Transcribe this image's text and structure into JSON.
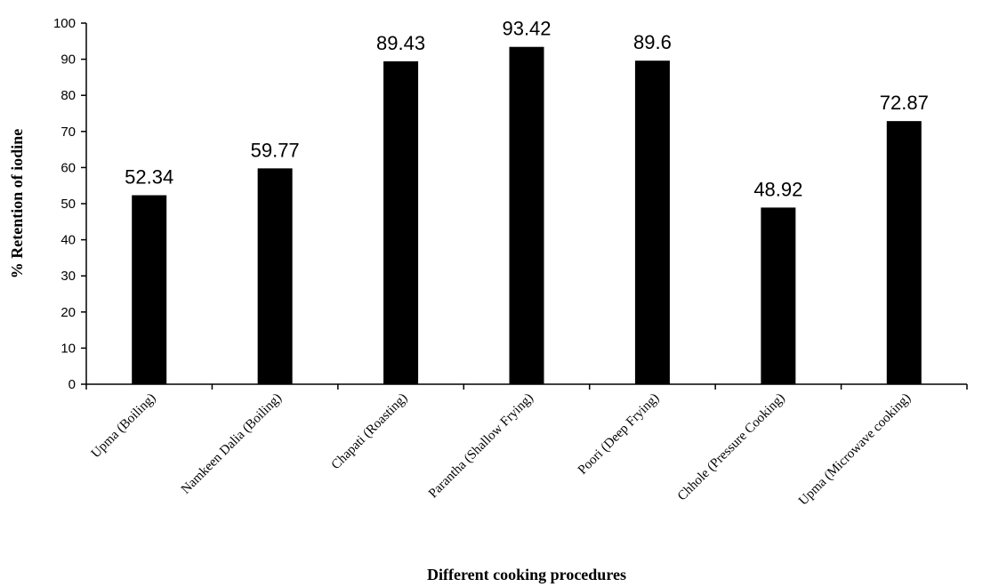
{
  "chart_data": {
    "type": "bar",
    "title": "",
    "xlabel": "Different cooking procedures",
    "ylabel": "% Retention of iodine",
    "categories": [
      "Upma (Boiling)",
      "Namkeen Dalia (Boiling)",
      "Chapati (Roasting)",
      "Parantha (Shallow Frying)",
      "Poori (Deep Frying)",
      "Chhole (Pressure Cooking)",
      "Upma (Microwave cooking)"
    ],
    "values": [
      52.34,
      59.77,
      89.43,
      93.42,
      89.6,
      48.92,
      72.87
    ],
    "data_labels": [
      "52.34",
      "59.77",
      "89.43",
      "93.42",
      "89.6",
      "48.92",
      "72.87"
    ],
    "ylim": [
      0,
      100
    ],
    "yticks": [
      "0",
      "10",
      "20",
      "30",
      "40",
      "50",
      "60",
      "70",
      "80",
      "90",
      "100"
    ],
    "bar_color": "#000000",
    "grid": false,
    "legend": "none"
  }
}
